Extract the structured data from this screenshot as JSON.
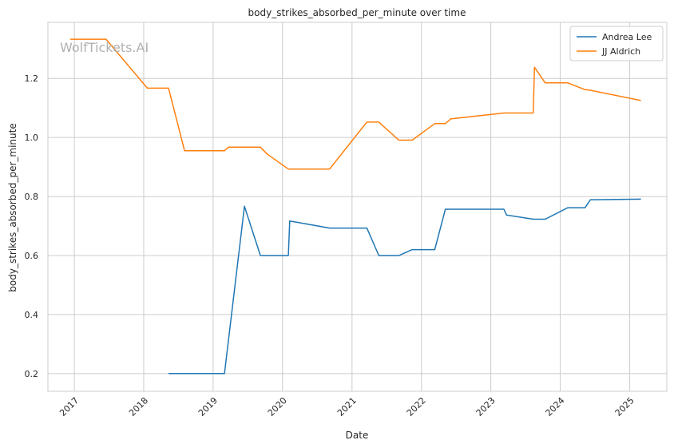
{
  "chart_data": {
    "type": "line",
    "title": "body_strikes_absorbed_per_minute over time",
    "xlabel": "Date",
    "ylabel": "body_strikes_absorbed_per_minute",
    "watermark": "WolfTickets.AI",
    "xlim": [
      "2016-08-15",
      "2025-07-15"
    ],
    "ylim": [
      0.14,
      1.39
    ],
    "xticks": [
      "2017",
      "2018",
      "2019",
      "2020",
      "2021",
      "2022",
      "2023",
      "2024",
      "2025"
    ],
    "yticks": [
      "0.2",
      "0.4",
      "0.6",
      "0.8",
      "1.0",
      "1.2"
    ],
    "grid": true,
    "legend_position": "top-right",
    "series": [
      {
        "name": "Andrea Lee",
        "color": "#1f77b4",
        "points": [
          [
            "2018-05-12",
            0.2
          ],
          [
            "2019-03-02",
            0.2
          ],
          [
            "2019-06-15",
            0.767
          ],
          [
            "2019-09-07",
            0.6
          ],
          [
            "2020-02-01",
            0.6
          ],
          [
            "2020-02-08",
            0.717
          ],
          [
            "2020-09-05",
            0.693
          ],
          [
            "2021-03-20",
            0.693
          ],
          [
            "2021-05-22",
            0.6
          ],
          [
            "2021-09-04",
            0.6
          ],
          [
            "2021-11-13",
            0.62
          ],
          [
            "2022-03-12",
            0.62
          ],
          [
            "2022-05-07",
            0.757
          ],
          [
            "2023-03-11",
            0.757
          ],
          [
            "2023-03-25",
            0.737
          ],
          [
            "2023-08-12",
            0.723
          ],
          [
            "2023-10-14",
            0.723
          ],
          [
            "2024-02-10",
            0.762
          ],
          [
            "2024-05-11",
            0.762
          ],
          [
            "2024-06-08",
            0.789
          ],
          [
            "2025-03-01",
            0.791
          ]
        ]
      },
      {
        "name": "JJ Aldrich",
        "color": "#ff7f0e",
        "points": [
          [
            "2016-12-10",
            1.333
          ],
          [
            "2017-06-17",
            1.333
          ],
          [
            "2018-01-20",
            1.167
          ],
          [
            "2018-05-12",
            1.167
          ],
          [
            "2018-08-04",
            0.955
          ],
          [
            "2019-03-02",
            0.955
          ],
          [
            "2019-03-23",
            0.967
          ],
          [
            "2019-09-07",
            0.967
          ],
          [
            "2019-10-12",
            0.944
          ],
          [
            "2020-02-01",
            0.893
          ],
          [
            "2020-09-05",
            0.893
          ],
          [
            "2021-03-20",
            1.052
          ],
          [
            "2021-05-22",
            1.052
          ],
          [
            "2021-09-04",
            0.991
          ],
          [
            "2021-11-13",
            0.991
          ],
          [
            "2022-03-12",
            1.047
          ],
          [
            "2022-05-07",
            1.047
          ],
          [
            "2022-06-04",
            1.063
          ],
          [
            "2023-03-11",
            1.083
          ],
          [
            "2023-08-12",
            1.083
          ],
          [
            "2023-08-19",
            1.238
          ],
          [
            "2023-10-14",
            1.185
          ],
          [
            "2024-02-10",
            1.185
          ],
          [
            "2024-05-11",
            1.162
          ],
          [
            "2024-06-08",
            1.16
          ],
          [
            "2025-03-01",
            1.125
          ]
        ]
      }
    ]
  }
}
